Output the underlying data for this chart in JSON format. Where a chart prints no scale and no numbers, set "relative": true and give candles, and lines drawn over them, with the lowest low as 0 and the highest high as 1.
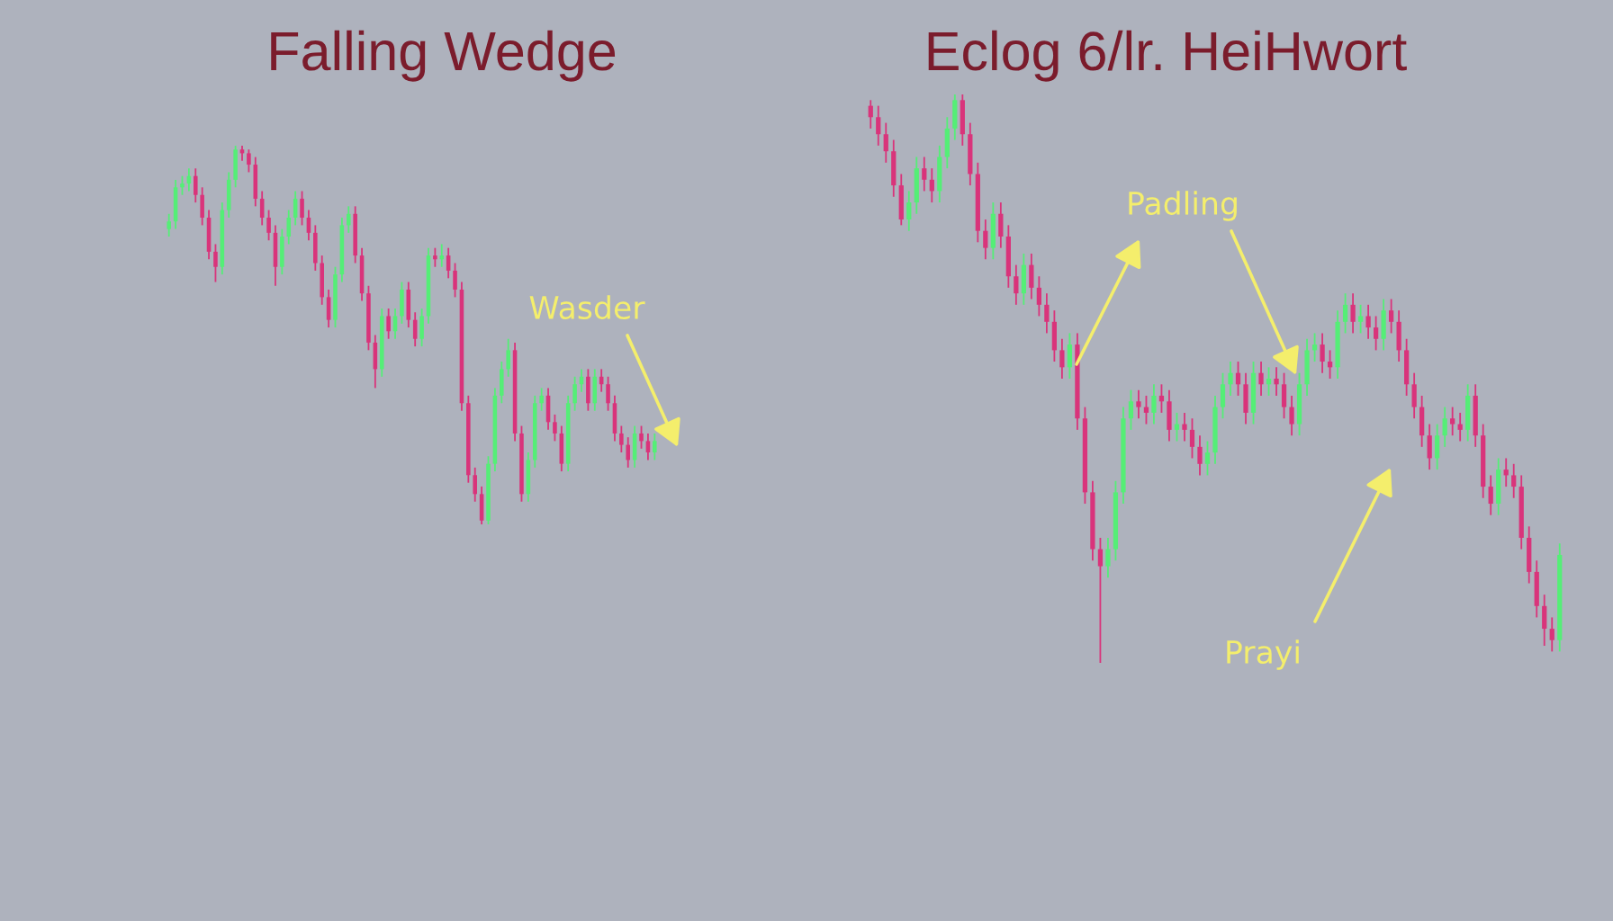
{
  "chart_data": [
    {
      "type": "candlestick",
      "title": "Falling Wedge",
      "relative": true,
      "tick_labels": false,
      "categories": [
        null,
        null,
        null,
        null,
        null,
        null,
        null,
        null,
        null,
        null,
        null,
        null,
        null,
        null,
        null,
        null,
        null,
        null,
        null,
        null,
        null,
        null,
        null,
        null,
        null,
        null,
        null,
        null,
        null,
        null,
        null,
        null,
        null,
        null,
        null,
        null,
        null,
        null,
        null,
        null,
        null,
        null,
        null,
        null,
        null,
        null,
        null,
        null,
        null,
        null,
        null,
        null,
        null,
        null,
        null,
        null,
        null,
        null,
        null,
        null,
        null,
        null,
        null,
        null,
        null,
        null,
        null,
        null,
        null,
        null,
        null,
        null,
        null,
        null
      ],
      "ohlc": [
        [
          0.78,
          0.82,
          0.76,
          0.8
        ],
        [
          0.8,
          0.91,
          0.78,
          0.89
        ],
        [
          0.89,
          0.92,
          0.87,
          0.9
        ],
        [
          0.9,
          0.94,
          0.88,
          0.92
        ],
        [
          0.92,
          0.94,
          0.85,
          0.87
        ],
        [
          0.87,
          0.89,
          0.79,
          0.81
        ],
        [
          0.81,
          0.83,
          0.7,
          0.72
        ],
        [
          0.72,
          0.74,
          0.64,
          0.68
        ],
        [
          0.68,
          0.85,
          0.66,
          0.83
        ],
        [
          0.83,
          0.93,
          0.81,
          0.91
        ],
        [
          0.91,
          1.0,
          0.89,
          0.99
        ],
        [
          0.99,
          1.0,
          0.96,
          0.98
        ],
        [
          0.98,
          0.99,
          0.93,
          0.95
        ],
        [
          0.95,
          0.97,
          0.84,
          0.86
        ],
        [
          0.86,
          0.88,
          0.79,
          0.81
        ],
        [
          0.81,
          0.83,
          0.75,
          0.77
        ],
        [
          0.77,
          0.79,
          0.63,
          0.68
        ],
        [
          0.68,
          0.78,
          0.66,
          0.76
        ],
        [
          0.76,
          0.83,
          0.74,
          0.81
        ],
        [
          0.81,
          0.88,
          0.79,
          0.86
        ],
        [
          0.86,
          0.88,
          0.79,
          0.81
        ],
        [
          0.81,
          0.83,
          0.75,
          0.77
        ],
        [
          0.77,
          0.79,
          0.67,
          0.69
        ],
        [
          0.69,
          0.71,
          0.58,
          0.6
        ],
        [
          0.6,
          0.62,
          0.52,
          0.54
        ],
        [
          0.54,
          0.68,
          0.52,
          0.66
        ],
        [
          0.66,
          0.81,
          0.64,
          0.79
        ],
        [
          0.79,
          0.84,
          0.77,
          0.82
        ],
        [
          0.82,
          0.84,
          0.69,
          0.71
        ],
        [
          0.71,
          0.73,
          0.59,
          0.61
        ],
        [
          0.61,
          0.63,
          0.46,
          0.48
        ],
        [
          0.48,
          0.5,
          0.36,
          0.41
        ],
        [
          0.41,
          0.57,
          0.39,
          0.55
        ],
        [
          0.55,
          0.57,
          0.49,
          0.51
        ],
        [
          0.51,
          0.57,
          0.49,
          0.55
        ],
        [
          0.55,
          0.64,
          0.53,
          0.62
        ],
        [
          0.62,
          0.64,
          0.52,
          0.54
        ],
        [
          0.54,
          0.56,
          0.47,
          0.49
        ],
        [
          0.49,
          0.57,
          0.47,
          0.55
        ],
        [
          0.55,
          0.73,
          0.53,
          0.71
        ],
        [
          0.71,
          0.73,
          0.68,
          0.7
        ],
        [
          0.7,
          0.74,
          0.68,
          0.71
        ],
        [
          0.71,
          0.73,
          0.65,
          0.67
        ],
        [
          0.67,
          0.69,
          0.6,
          0.62
        ],
        [
          0.62,
          0.64,
          0.3,
          0.32
        ],
        [
          0.32,
          0.34,
          0.11,
          0.13
        ],
        [
          0.13,
          0.15,
          0.06,
          0.08
        ],
        [
          0.08,
          0.1,
          0.0,
          0.01
        ],
        [
          0.01,
          0.18,
          0.0,
          0.16
        ],
        [
          0.16,
          0.36,
          0.14,
          0.34
        ],
        [
          0.34,
          0.43,
          0.32,
          0.41
        ],
        [
          0.41,
          0.49,
          0.39,
          0.46
        ],
        [
          0.46,
          0.48,
          0.22,
          0.24
        ],
        [
          0.24,
          0.26,
          0.06,
          0.08
        ],
        [
          0.08,
          0.19,
          0.06,
          0.17
        ],
        [
          0.17,
          0.34,
          0.15,
          0.32
        ],
        [
          0.32,
          0.36,
          0.3,
          0.34
        ],
        [
          0.34,
          0.36,
          0.25,
          0.27
        ],
        [
          0.27,
          0.29,
          0.22,
          0.24
        ],
        [
          0.24,
          0.26,
          0.14,
          0.16
        ],
        [
          0.16,
          0.34,
          0.14,
          0.32
        ],
        [
          0.32,
          0.39,
          0.3,
          0.37
        ],
        [
          0.37,
          0.41,
          0.35,
          0.39
        ],
        [
          0.39,
          0.41,
          0.3,
          0.32
        ],
        [
          0.32,
          0.41,
          0.3,
          0.39
        ],
        [
          0.39,
          0.41,
          0.35,
          0.37
        ],
        [
          0.37,
          0.39,
          0.3,
          0.32
        ],
        [
          0.32,
          0.34,
          0.22,
          0.24
        ],
        [
          0.24,
          0.26,
          0.19,
          0.21
        ],
        [
          0.21,
          0.23,
          0.15,
          0.17
        ],
        [
          0.17,
          0.26,
          0.15,
          0.24
        ],
        [
          0.24,
          0.26,
          0.2,
          0.22
        ],
        [
          0.22,
          0.24,
          0.17,
          0.19
        ],
        [
          0.19,
          0.24,
          0.17,
          0.22
        ]
      ],
      "colors": [
        "#55ee77",
        "#55ee77",
        "#55ee77",
        "#55ee77",
        "#d9347b",
        "#d9347b",
        "#d9347b",
        "#d9347b",
        "#55ee77",
        "#55ee77",
        "#55ee77",
        "#d9347b",
        "#d9347b",
        "#d9347b",
        "#d9347b",
        "#d9347b",
        "#d9347b",
        "#55ee77",
        "#55ee77",
        "#55ee77",
        "#d9347b",
        "#d9347b",
        "#d9347b",
        "#d9347b",
        "#d9347b",
        "#55ee77",
        "#55ee77",
        "#55ee77",
        "#d9347b",
        "#d9347b",
        "#d9347b",
        "#d9347b",
        "#55ee77",
        "#d9347b",
        "#55ee77",
        "#55ee77",
        "#d9347b",
        "#d9347b",
        "#55ee77",
        "#55ee77",
        "#d9347b",
        "#55ee77",
        "#d9347b",
        "#d9347b",
        "#d9347b",
        "#d9347b",
        "#d9347b",
        "#d9347b",
        "#55ee77",
        "#55ee77",
        "#55ee77",
        "#55ee77",
        "#d9347b",
        "#d9347b",
        "#55ee77",
        "#55ee77",
        "#55ee77",
        "#d9347b",
        "#d9347b",
        "#d9347b",
        "#55ee77",
        "#55ee77",
        "#55ee77",
        "#d9347b",
        "#55ee77",
        "#d9347b",
        "#d9347b",
        "#d9347b",
        "#d9347b",
        "#d9347b",
        "#55ee77",
        "#d9347b",
        "#d9347b",
        "#55ee77"
      ],
      "annotations": [
        "Wasder"
      ]
    },
    {
      "type": "candlestick",
      "title": "Eclog 6/lr. HeiHwort",
      "relative": true,
      "tick_labels": false,
      "categories": [
        null,
        null,
        null,
        null,
        null,
        null,
        null,
        null,
        null,
        null,
        null,
        null,
        null,
        null,
        null,
        null,
        null,
        null,
        null,
        null,
        null,
        null,
        null,
        null,
        null,
        null,
        null,
        null,
        null,
        null,
        null,
        null,
        null,
        null,
        null,
        null,
        null,
        null,
        null,
        null,
        null,
        null,
        null,
        null,
        null,
        null,
        null,
        null,
        null,
        null,
        null,
        null,
        null,
        null,
        null,
        null,
        null,
        null,
        null,
        null,
        null,
        null,
        null,
        null,
        null,
        null,
        null,
        null,
        null,
        null,
        null,
        null,
        null,
        null,
        null,
        null,
        null,
        null,
        null,
        null,
        null,
        null,
        null,
        null,
        null,
        null,
        null,
        null,
        null,
        null,
        null
      ],
      "ohlc": [
        [
          0.98,
          0.99,
          0.94,
          0.96
        ],
        [
          0.96,
          0.98,
          0.91,
          0.93
        ],
        [
          0.93,
          0.95,
          0.88,
          0.9
        ],
        [
          0.9,
          0.92,
          0.82,
          0.84
        ],
        [
          0.84,
          0.86,
          0.77,
          0.78
        ],
        [
          0.78,
          0.83,
          0.76,
          0.81
        ],
        [
          0.81,
          0.89,
          0.79,
          0.87
        ],
        [
          0.87,
          0.89,
          0.83,
          0.85
        ],
        [
          0.85,
          0.87,
          0.81,
          0.83
        ],
        [
          0.83,
          0.91,
          0.81,
          0.89
        ],
        [
          0.89,
          0.96,
          0.87,
          0.94
        ],
        [
          0.94,
          1.0,
          0.92,
          0.99
        ],
        [
          0.99,
          1.0,
          0.91,
          0.93
        ],
        [
          0.93,
          0.95,
          0.84,
          0.86
        ],
        [
          0.86,
          0.88,
          0.74,
          0.76
        ],
        [
          0.76,
          0.78,
          0.71,
          0.73
        ],
        [
          0.73,
          0.81,
          0.71,
          0.79
        ],
        [
          0.79,
          0.81,
          0.73,
          0.75
        ],
        [
          0.75,
          0.77,
          0.66,
          0.68
        ],
        [
          0.68,
          0.7,
          0.63,
          0.65
        ],
        [
          0.65,
          0.72,
          0.63,
          0.7
        ],
        [
          0.7,
          0.72,
          0.64,
          0.66
        ],
        [
          0.66,
          0.68,
          0.61,
          0.63
        ],
        [
          0.63,
          0.65,
          0.58,
          0.6
        ],
        [
          0.6,
          0.62,
          0.53,
          0.55
        ],
        [
          0.55,
          0.57,
          0.5,
          0.52
        ],
        [
          0.52,
          0.58,
          0.5,
          0.56
        ],
        [
          0.56,
          0.58,
          0.41,
          0.43
        ],
        [
          0.43,
          0.45,
          0.28,
          0.3
        ],
        [
          0.3,
          0.32,
          0.18,
          0.2
        ],
        [
          0.2,
          0.22,
          0.0,
          0.17
        ],
        [
          0.17,
          0.22,
          0.15,
          0.2
        ],
        [
          0.2,
          0.32,
          0.18,
          0.3
        ],
        [
          0.3,
          0.45,
          0.28,
          0.43
        ],
        [
          0.43,
          0.48,
          0.41,
          0.46
        ],
        [
          0.46,
          0.48,
          0.43,
          0.45
        ],
        [
          0.45,
          0.47,
          0.42,
          0.44
        ],
        [
          0.44,
          0.49,
          0.42,
          0.47
        ],
        [
          0.47,
          0.49,
          0.44,
          0.46
        ],
        [
          0.46,
          0.48,
          0.39,
          0.41
        ],
        [
          0.41,
          0.44,
          0.39,
          0.42
        ],
        [
          0.42,
          0.44,
          0.39,
          0.41
        ],
        [
          0.41,
          0.43,
          0.36,
          0.38
        ],
        [
          0.38,
          0.4,
          0.33,
          0.35
        ],
        [
          0.35,
          0.39,
          0.33,
          0.37
        ],
        [
          0.37,
          0.47,
          0.35,
          0.45
        ],
        [
          0.45,
          0.51,
          0.43,
          0.49
        ],
        [
          0.49,
          0.53,
          0.47,
          0.51
        ],
        [
          0.51,
          0.53,
          0.47,
          0.49
        ],
        [
          0.49,
          0.51,
          0.42,
          0.44
        ],
        [
          0.44,
          0.53,
          0.42,
          0.51
        ],
        [
          0.51,
          0.53,
          0.47,
          0.49
        ],
        [
          0.49,
          0.52,
          0.47,
          0.5
        ],
        [
          0.5,
          0.52,
          0.47,
          0.49
        ],
        [
          0.49,
          0.51,
          0.43,
          0.45
        ],
        [
          0.45,
          0.47,
          0.4,
          0.42
        ],
        [
          0.42,
          0.51,
          0.4,
          0.49
        ],
        [
          0.49,
          0.57,
          0.47,
          0.55
        ],
        [
          0.55,
          0.58,
          0.53,
          0.56
        ],
        [
          0.56,
          0.58,
          0.51,
          0.53
        ],
        [
          0.53,
          0.55,
          0.5,
          0.52
        ],
        [
          0.52,
          0.62,
          0.5,
          0.6
        ],
        [
          0.6,
          0.65,
          0.58,
          0.63
        ],
        [
          0.63,
          0.65,
          0.58,
          0.6
        ],
        [
          0.6,
          0.63,
          0.58,
          0.61
        ],
        [
          0.61,
          0.63,
          0.57,
          0.59
        ],
        [
          0.59,
          0.61,
          0.55,
          0.57
        ],
        [
          0.57,
          0.64,
          0.55,
          0.62
        ],
        [
          0.62,
          0.64,
          0.58,
          0.6
        ],
        [
          0.6,
          0.62,
          0.53,
          0.55
        ],
        [
          0.55,
          0.57,
          0.47,
          0.49
        ],
        [
          0.49,
          0.51,
          0.43,
          0.45
        ],
        [
          0.45,
          0.47,
          0.38,
          0.4
        ],
        [
          0.4,
          0.42,
          0.34,
          0.36
        ],
        [
          0.36,
          0.42,
          0.34,
          0.4
        ],
        [
          0.4,
          0.45,
          0.38,
          0.43
        ],
        [
          0.43,
          0.45,
          0.4,
          0.42
        ],
        [
          0.42,
          0.44,
          0.39,
          0.41
        ],
        [
          0.41,
          0.49,
          0.39,
          0.47
        ],
        [
          0.47,
          0.49,
          0.38,
          0.4
        ],
        [
          0.4,
          0.42,
          0.29,
          0.31
        ],
        [
          0.31,
          0.33,
          0.26,
          0.28
        ],
        [
          0.28,
          0.36,
          0.26,
          0.34
        ],
        [
          0.34,
          0.36,
          0.31,
          0.33
        ],
        [
          0.33,
          0.35,
          0.29,
          0.31
        ],
        [
          0.31,
          0.33,
          0.2,
          0.22
        ],
        [
          0.22,
          0.24,
          0.14,
          0.16
        ],
        [
          0.16,
          0.18,
          0.08,
          0.1
        ],
        [
          0.1,
          0.12,
          0.03,
          0.06
        ],
        [
          0.06,
          0.08,
          0.02,
          0.04
        ],
        [
          0.04,
          0.21,
          0.02,
          0.19
        ]
      ],
      "colors": [
        "#d9347b",
        "#d9347b",
        "#d9347b",
        "#d9347b",
        "#d9347b",
        "#55ee77",
        "#55ee77",
        "#d9347b",
        "#d9347b",
        "#55ee77",
        "#55ee77",
        "#55ee77",
        "#d9347b",
        "#d9347b",
        "#d9347b",
        "#d9347b",
        "#55ee77",
        "#d9347b",
        "#d9347b",
        "#d9347b",
        "#55ee77",
        "#d9347b",
        "#d9347b",
        "#d9347b",
        "#d9347b",
        "#d9347b",
        "#55ee77",
        "#d9347b",
        "#d9347b",
        "#d9347b",
        "#d9347b",
        "#55ee77",
        "#55ee77",
        "#55ee77",
        "#55ee77",
        "#d9347b",
        "#d9347b",
        "#55ee77",
        "#d9347b",
        "#d9347b",
        "#55ee77",
        "#d9347b",
        "#d9347b",
        "#d9347b",
        "#55ee77",
        "#55ee77",
        "#55ee77",
        "#55ee77",
        "#d9347b",
        "#d9347b",
        "#55ee77",
        "#d9347b",
        "#55ee77",
        "#d9347b",
        "#d9347b",
        "#d9347b",
        "#55ee77",
        "#55ee77",
        "#55ee77",
        "#d9347b",
        "#d9347b",
        "#55ee77",
        "#55ee77",
        "#d9347b",
        "#55ee77",
        "#d9347b",
        "#d9347b",
        "#55ee77",
        "#d9347b",
        "#d9347b",
        "#d9347b",
        "#d9347b",
        "#d9347b",
        "#d9347b",
        "#55ee77",
        "#55ee77",
        "#d9347b",
        "#d9347b",
        "#55ee77",
        "#d9347b",
        "#d9347b",
        "#d9347b",
        "#55ee77",
        "#d9347b",
        "#d9347b",
        "#d9347b",
        "#d9347b",
        "#d9347b",
        "#d9347b",
        "#d9347b",
        "#55ee77"
      ],
      "annotations": [
        "Padling",
        "Prayi"
      ]
    }
  ]
}
